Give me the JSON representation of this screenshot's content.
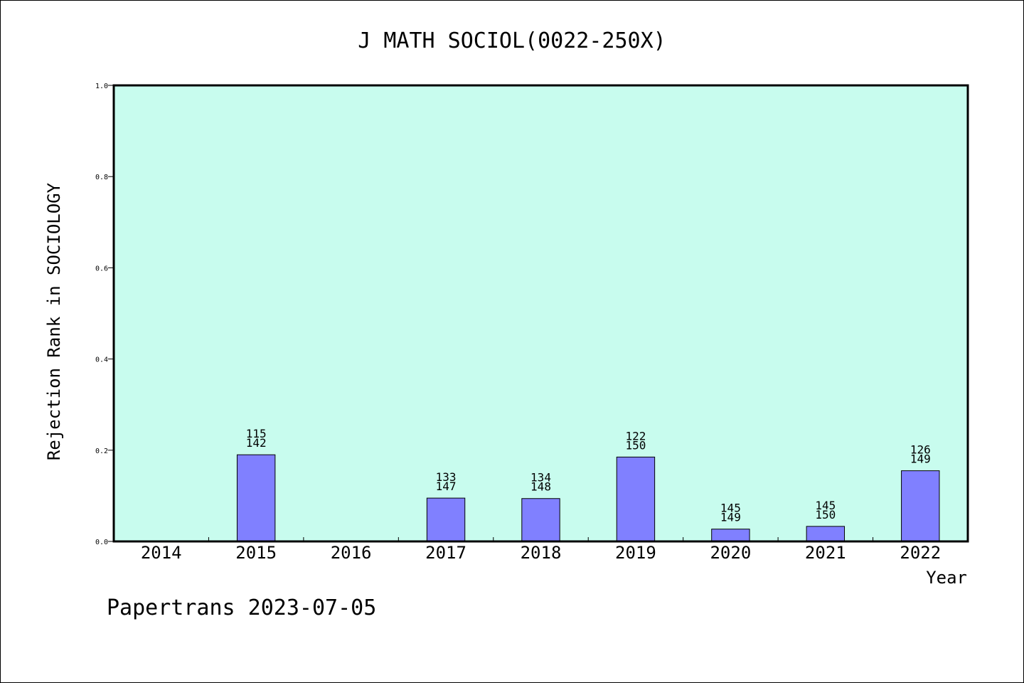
{
  "chart_data": {
    "type": "bar",
    "title": "J MATH SOCIOL(0022-250X)",
    "xlabel": "Year",
    "ylabel": "Rejection Rank in SOCIOLOGY",
    "categories": [
      "2014",
      "2015",
      "2016",
      "2017",
      "2018",
      "2019",
      "2020",
      "2021",
      "2022"
    ],
    "values": [
      null,
      0.19,
      null,
      0.095,
      0.094,
      0.185,
      0.027,
      0.033,
      0.155
    ],
    "bar_labels": [
      null,
      [
        "115",
        "142"
      ],
      null,
      [
        "133",
        "147"
      ],
      [
        "134",
        "148"
      ],
      [
        "122",
        "150"
      ],
      [
        "145",
        "149"
      ],
      [
        "145",
        "150"
      ],
      [
        "126",
        "149"
      ]
    ],
    "ylim": [
      0,
      1.0
    ],
    "yticks": [
      "0.0",
      "0.2",
      "0.4",
      "0.6",
      "0.8",
      "1.0"
    ],
    "grid": false,
    "colors": {
      "plot_background": "#c8fcee",
      "bar_fill": "#8080ff",
      "bar_stroke": "#000000"
    }
  },
  "footer": "Papertrans 2023-07-05"
}
